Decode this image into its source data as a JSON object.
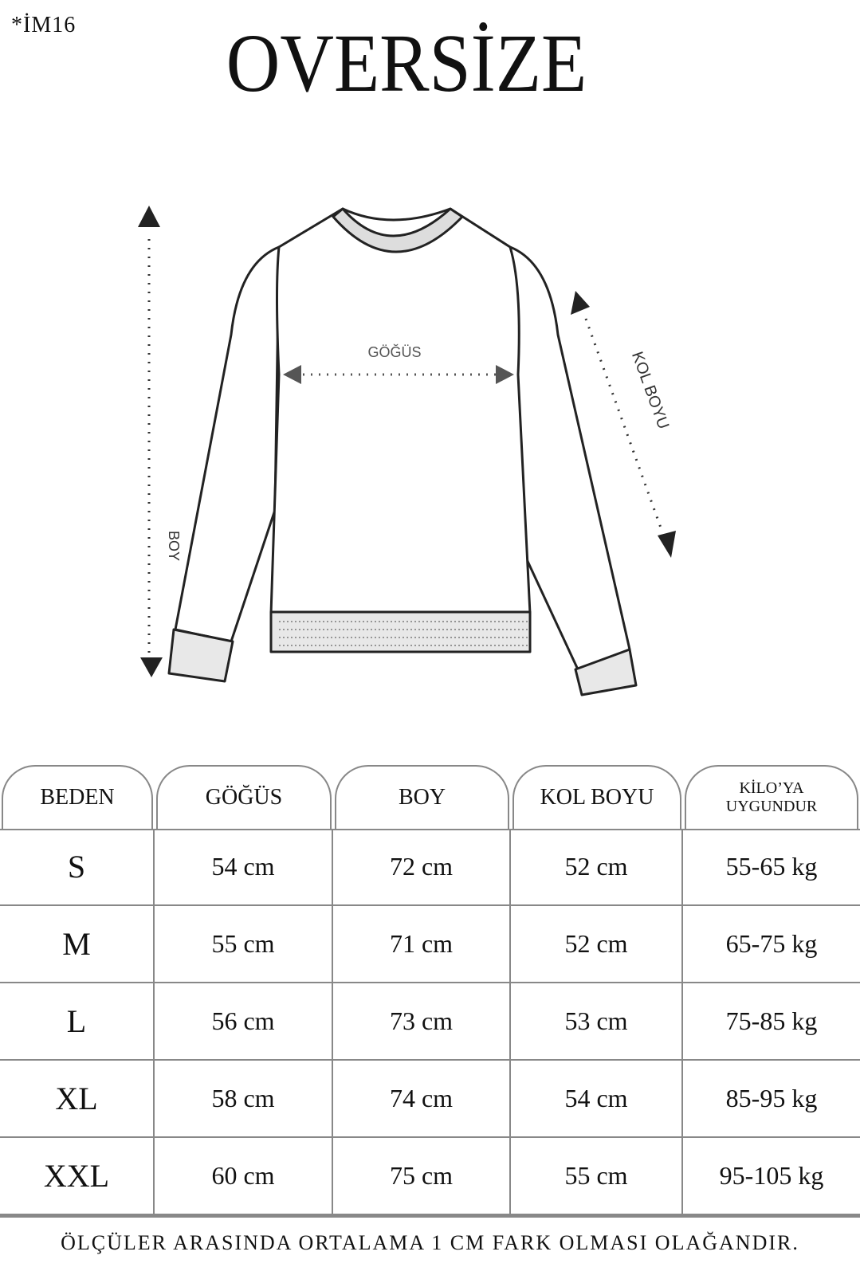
{
  "header": {
    "code": "*İM16",
    "title": "OVERSİZE"
  },
  "diagram": {
    "chest": "GÖĞÜS",
    "length": "BOY",
    "sleeve": "KOL BOYU"
  },
  "table": {
    "headers": [
      "BEDEN",
      "GÖĞÜS",
      "BOY",
      "KOL BOYU",
      "KİLO’YA UYGUNDUR"
    ],
    "rows": [
      [
        "S",
        "54 cm",
        "72 cm",
        "52 cm",
        "55-65 kg"
      ],
      [
        "M",
        "55 cm",
        "71 cm",
        "52 cm",
        "65-75 kg"
      ],
      [
        "L",
        "56 cm",
        "73 cm",
        "53 cm",
        "75-85 kg"
      ],
      [
        "XL",
        "58 cm",
        "74 cm",
        "54 cm",
        "85-95 kg"
      ],
      [
        "XXL",
        "60 cm",
        "75 cm",
        "55 cm",
        "95-105 kg"
      ]
    ]
  },
  "footer": {
    "note": "ÖLÇÜLER ARASINDA ORTALAMA 1 CM FARK OLMASI OLAĞANDIR."
  }
}
